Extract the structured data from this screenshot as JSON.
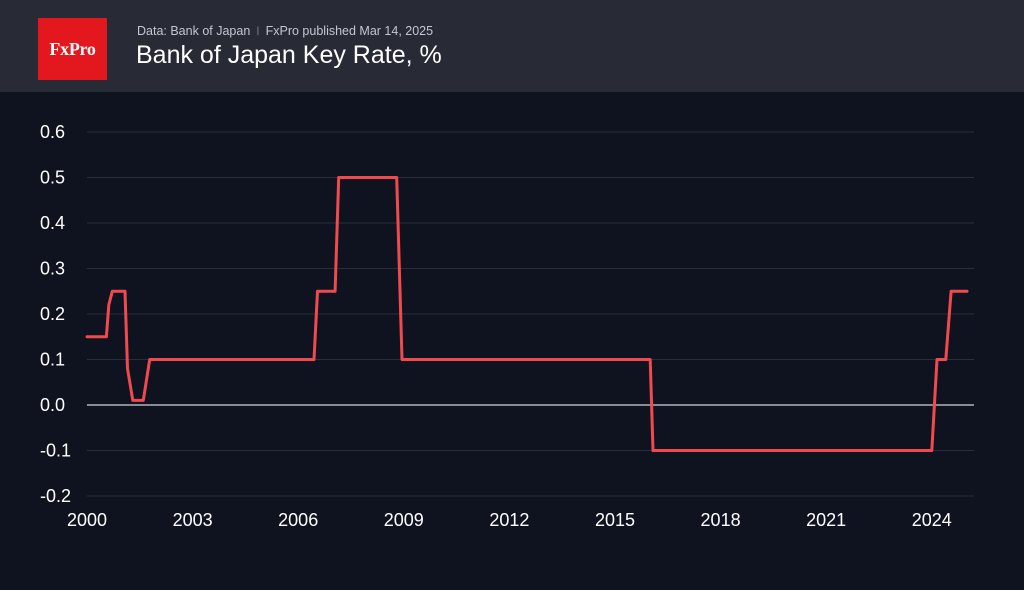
{
  "header": {
    "logo_text": "FxPro",
    "source_text": "Data: Bank of Japan",
    "separator": "I",
    "published_text": "FxPro published Mar 14, 2025",
    "title": "Bank of Japan Key Rate, %"
  },
  "colors": {
    "background": "#0f1320",
    "header_bg": "#282b35",
    "brand_red": "#e3181f",
    "line": "#f04a4f",
    "grid": "#2a2e3a",
    "zero_line": "#cfd3dc",
    "tick_text": "#ffffff"
  },
  "chart_data": {
    "type": "line",
    "title": "Bank of Japan Key Rate, %",
    "xlabel": "",
    "ylabel": "",
    "xlim": [
      2000.0,
      2025.2
    ],
    "ylim": [
      -0.2,
      0.6
    ],
    "x_ticks": [
      2000,
      2003,
      2006,
      2009,
      2012,
      2015,
      2018,
      2021,
      2024
    ],
    "x_tick_labels": [
      "2000",
      "2003",
      "2006",
      "2009",
      "2012",
      "2015",
      "2018",
      "2021",
      "2024"
    ],
    "y_ticks": [
      0.6,
      0.5,
      0.4,
      0.3,
      0.2,
      0.1,
      0.0,
      -0.1,
      -0.2
    ],
    "y_tick_labels": [
      "0.6",
      "0.5",
      "0.4",
      "0.3",
      "0.2",
      "0.1",
      "0.0",
      "-0.1",
      "-0.2"
    ],
    "grid": true,
    "series": [
      {
        "name": "Bank of Japan Key Rate",
        "x": [
          2000.0,
          2000.55,
          2000.62,
          2000.72,
          2001.08,
          2001.15,
          2001.3,
          2001.6,
          2001.78,
          2006.45,
          2006.55,
          2007.05,
          2007.15,
          2008.8,
          2008.95,
          2016.0,
          2016.08,
          2024.0,
          2024.15,
          2024.4,
          2024.55,
          2025.0
        ],
        "values": [
          0.15,
          0.15,
          0.22,
          0.25,
          0.25,
          0.08,
          0.01,
          0.01,
          0.1,
          0.1,
          0.25,
          0.25,
          0.5,
          0.5,
          0.1,
          0.1,
          -0.1,
          -0.1,
          0.1,
          0.1,
          0.25,
          0.25
        ]
      }
    ]
  }
}
